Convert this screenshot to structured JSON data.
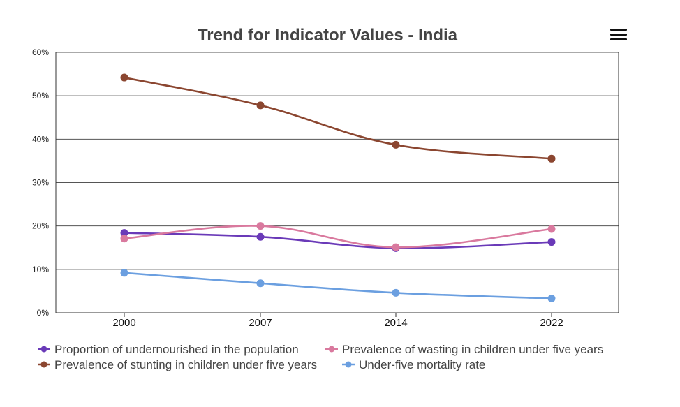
{
  "chart_data": {
    "type": "line",
    "title": "Trend for Indicator Values - India",
    "categories": [
      "2000",
      "2007",
      "2014",
      "2022"
    ],
    "y_ticks": [
      "0%",
      "10%",
      "20%",
      "30%",
      "40%",
      "50%",
      "60%"
    ],
    "ylim": [
      0,
      60
    ],
    "grid": true,
    "legend_position": "bottom",
    "series": [
      {
        "name": "Proportion of undernourished in the population",
        "color": "#6a3ab8",
        "values": [
          18.4,
          17.5,
          14.9,
          16.3
        ]
      },
      {
        "name": "Prevalence of wasting in children under five years",
        "color": "#d9799e",
        "values": [
          17.1,
          20.0,
          15.1,
          19.3
        ]
      },
      {
        "name": "Prevalence of stunting in children under five years",
        "color": "#8b4630",
        "values": [
          54.2,
          47.8,
          38.7,
          35.5
        ]
      },
      {
        "name": "Under-five mortality rate",
        "color": "#6b9fe0",
        "values": [
          9.2,
          6.8,
          4.6,
          3.3
        ]
      }
    ]
  },
  "menu": {
    "icon": "hamburger-menu-icon"
  }
}
